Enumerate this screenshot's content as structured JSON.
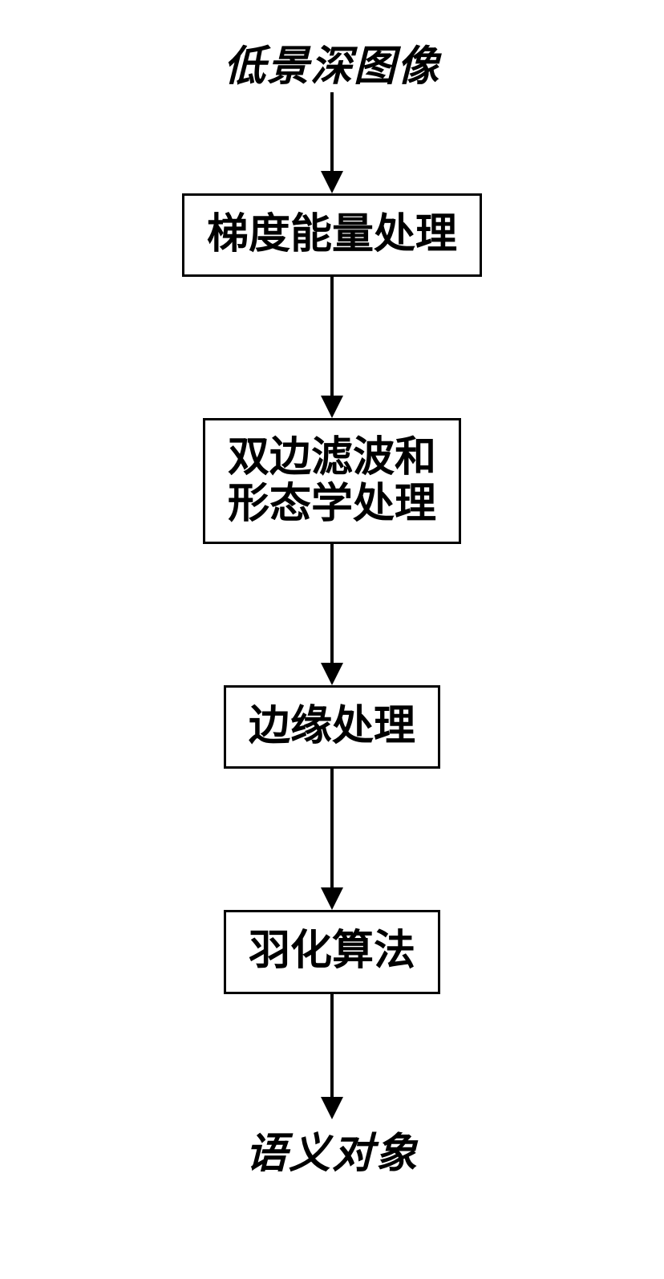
{
  "flowchart": {
    "type": "flowchart",
    "background_color": "#ffffff",
    "border_color": "#000000",
    "text_color": "#000000",
    "font_size": 52,
    "font_weight": "bold",
    "border_width": 3,
    "arrow_line_width": 4,
    "arrow_head_size": 28,
    "nodes": [
      {
        "id": "input",
        "kind": "text",
        "label": "低景深图像"
      },
      {
        "id": "step1",
        "kind": "box",
        "label": "梯度能量处理"
      },
      {
        "id": "step2",
        "kind": "box",
        "label_line1": "双边滤波和",
        "label_line2": "形态学处理"
      },
      {
        "id": "step3",
        "kind": "box",
        "label": "边缘处理"
      },
      {
        "id": "step4",
        "kind": "box",
        "label": "羽化算法"
      },
      {
        "id": "output",
        "kind": "text",
        "label": "语义对象"
      }
    ],
    "arrow_heights": [
      100,
      150,
      150,
      150,
      130
    ]
  }
}
